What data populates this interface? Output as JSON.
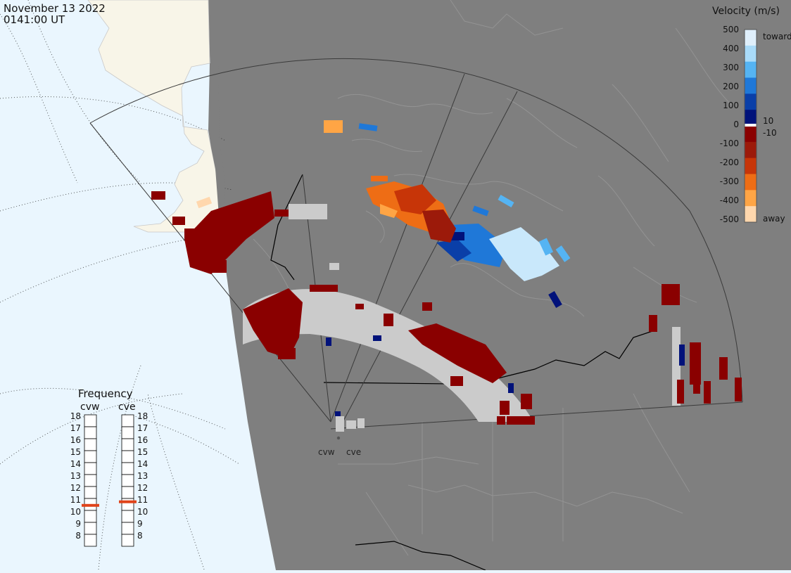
{
  "header": {
    "date": "November 13 2022",
    "time": "0141:00 UT"
  },
  "legend": {
    "title": "Velocity (m/s)",
    "scale_labels": [
      "500",
      "400",
      "300",
      "200",
      "100",
      "0",
      "-100",
      "-200",
      "-300",
      "-400",
      "-500"
    ],
    "small_labels": [
      "10",
      "-10"
    ],
    "end_labels": [
      "toward",
      "away"
    ],
    "colors": [
      "#dfeffb",
      "#a9dbf9",
      "#55b4f3",
      "#1f78d8",
      "#0a3fa8",
      "#01127a",
      "#8a0000",
      "#9c1a0a",
      "#c73508",
      "#ee6d15",
      "#ffa545",
      "#ffd7ad"
    ]
  },
  "frequency": {
    "title": "Frequency",
    "radars": [
      "cvw",
      "cve"
    ],
    "levels": [
      "18",
      "17",
      "16",
      "15",
      "14",
      "13",
      "12",
      "11",
      "10",
      "9",
      "8"
    ],
    "cvw_mhz": 10.6,
    "cve_mhz": 10.9,
    "marker_color": "#e0431a"
  },
  "sites": [
    "cvw",
    "cve"
  ],
  "colors": {
    "ocean": "#eaf6fe",
    "land_day": "#f8f5e8",
    "night": "#7f7f7f",
    "ground_scatter": "#cbcbcb"
  }
}
